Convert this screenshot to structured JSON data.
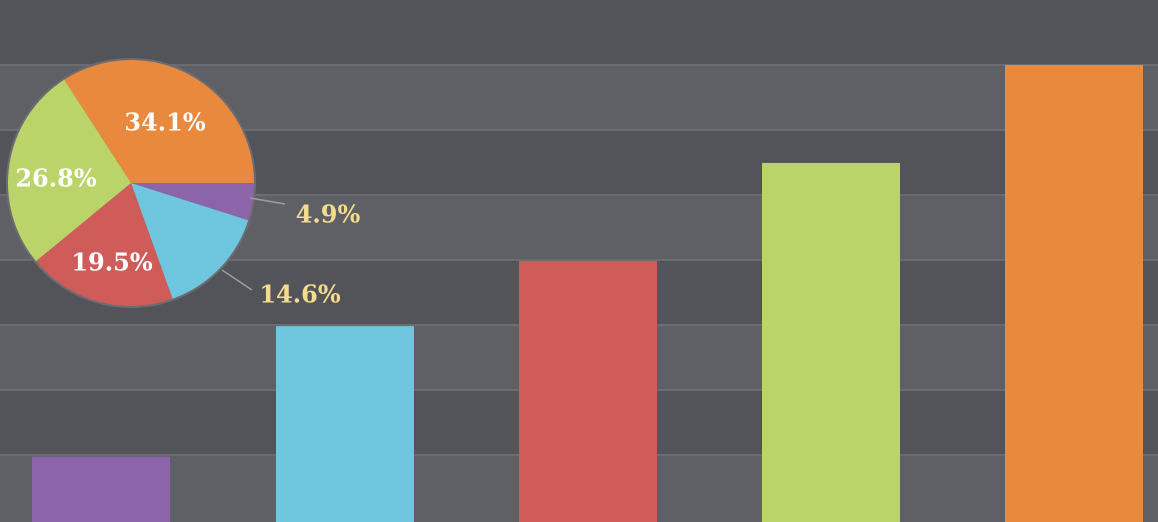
{
  "chart_data": [
    {
      "type": "bar",
      "categories": [
        "purple",
        "blue",
        "red",
        "green",
        "orange"
      ],
      "values": [
        10,
        30,
        40,
        55,
        70
      ],
      "colors": [
        "#8c64aa",
        "#6ec6df",
        "#d05c5a",
        "#bad46a",
        "#e8893e"
      ],
      "ylim": [
        0,
        70
      ],
      "grid": true
    },
    {
      "type": "pie",
      "slices": [
        {
          "label": "34.1%",
          "value": 34.1,
          "color": "#e8893e"
        },
        {
          "label": "4.9%",
          "value": 4.9,
          "color": "#8c64aa"
        },
        {
          "label": "14.6%",
          "value": 14.6,
          "color": "#6ec6df"
        },
        {
          "label": "19.5%",
          "value": 19.5,
          "color": "#d05c5a"
        },
        {
          "label": "26.8%",
          "value": 26.8,
          "color": "#bad46a"
        }
      ],
      "label_colors": {
        "inside": "#ffffff",
        "outside": "#f3dc8c"
      }
    }
  ],
  "colors": {
    "band_dark": "#525459",
    "band_light": "#5e6066",
    "grid_line": "#6a6c72"
  }
}
